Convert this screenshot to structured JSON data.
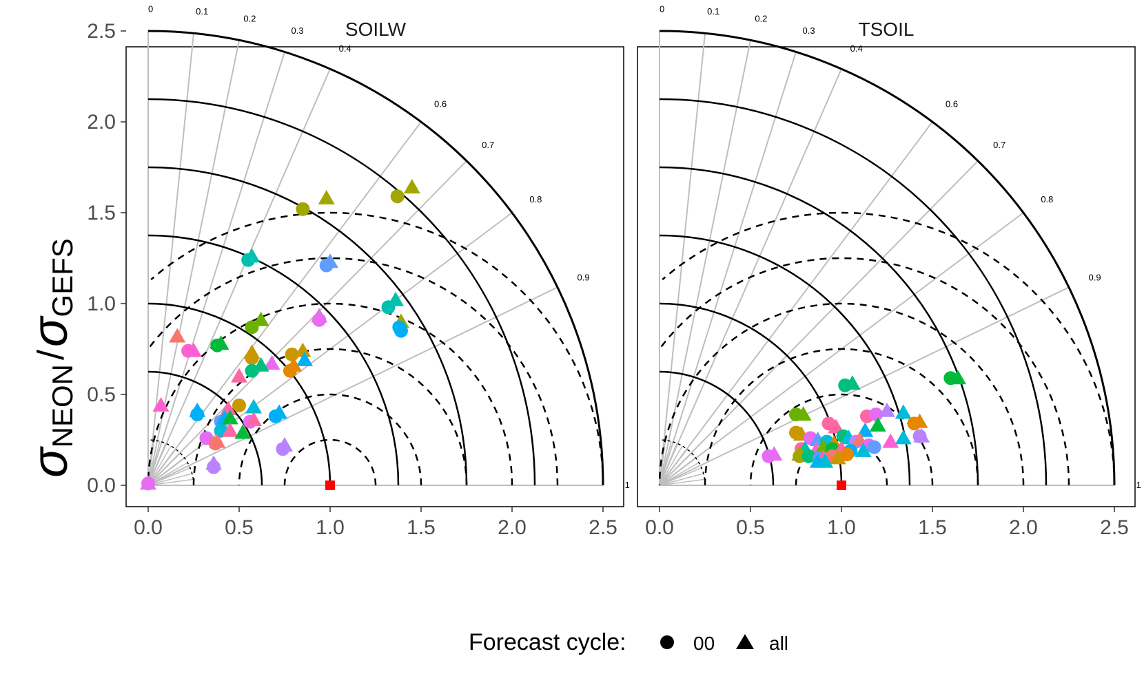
{
  "figure": {
    "ylabel_main": "σ",
    "ylabel_sub1": "NEON",
    "ylabel_sep": "/",
    "ylabel_sub2": "GEFS"
  },
  "legend": {
    "title": "Forecast cycle:",
    "items": [
      {
        "label": "00",
        "shape": "circle"
      },
      {
        "label": "all",
        "shape": "triangle"
      }
    ]
  },
  "colors": {
    "reference": "#ff0000",
    "sd_arcs": "#000000",
    "rmsd_arcs": "#000000",
    "corr_rays": "#bebebe",
    "palette": [
      "#F8766D",
      "#E58700",
      "#C99800",
      "#A3A500",
      "#6BB100",
      "#00BA38",
      "#00BF7D",
      "#00C0AF",
      "#00BCD8",
      "#00B0F6",
      "#619CFF",
      "#B983FF",
      "#E76BF3",
      "#FD61D1",
      "#FF67A4"
    ]
  },
  "chart_data": [
    {
      "type": "scatter",
      "subtype": "taylor-diagram",
      "title": "SOILW",
      "xlim": [
        0,
        2.5
      ],
      "ylim": [
        0,
        2.5
      ],
      "ticks": [
        "0.0",
        "0.5",
        "1.0",
        "1.5",
        "2.0",
        "2.5"
      ],
      "tick_values": [
        0,
        0.5,
        1.0,
        1.5,
        2.0,
        2.5
      ],
      "sd_arcs": [
        0.25,
        0.625,
        1.0,
        1.375,
        1.75,
        2.125,
        2.5
      ],
      "rmsd_arcs": [
        0.25,
        0.5,
        0.75,
        1.0,
        1.25,
        1.5
      ],
      "correlation_labels": [
        "0",
        "0.1",
        "0.2",
        "0.3",
        "0.4",
        "0.6",
        "0.7",
        "0.8",
        "0.9",
        "1"
      ],
      "correlation_values": [
        0,
        0.1,
        0.2,
        0.3,
        0.4,
        0.6,
        0.7,
        0.8,
        0.9,
        1
      ],
      "reference_point": [
        1.0,
        0.0
      ],
      "points": [
        {
          "x": 0.85,
          "y": 1.52,
          "shape": "circle",
          "color": "#A3A500"
        },
        {
          "x": 0.98,
          "y": 1.58,
          "shape": "triangle",
          "color": "#A3A500"
        },
        {
          "x": 1.37,
          "y": 1.59,
          "shape": "circle",
          "color": "#A3A500"
        },
        {
          "x": 1.45,
          "y": 1.64,
          "shape": "triangle",
          "color": "#A3A500"
        },
        {
          "x": 0.55,
          "y": 1.24,
          "shape": "circle",
          "color": "#00C0AF"
        },
        {
          "x": 0.57,
          "y": 1.26,
          "shape": "triangle",
          "color": "#00C0AF"
        },
        {
          "x": 0.98,
          "y": 1.21,
          "shape": "circle",
          "color": "#619CFF"
        },
        {
          "x": 1.0,
          "y": 1.23,
          "shape": "triangle",
          "color": "#619CFF"
        },
        {
          "x": 1.32,
          "y": 0.98,
          "shape": "circle",
          "color": "#00C0AF"
        },
        {
          "x": 1.36,
          "y": 1.02,
          "shape": "triangle",
          "color": "#00C0AF"
        },
        {
          "x": 1.39,
          "y": 0.9,
          "shape": "triangle",
          "color": "#A3A500"
        },
        {
          "x": 1.38,
          "y": 0.87,
          "shape": "circle",
          "color": "#00B0F6"
        },
        {
          "x": 1.39,
          "y": 0.85,
          "shape": "circle",
          "color": "#00B0F6"
        },
        {
          "x": 0.94,
          "y": 0.91,
          "shape": "circle",
          "color": "#E76BF3"
        },
        {
          "x": 0.94,
          "y": 0.93,
          "shape": "triangle",
          "color": "#E76BF3"
        },
        {
          "x": 0.57,
          "y": 0.87,
          "shape": "circle",
          "color": "#6BB100"
        },
        {
          "x": 0.62,
          "y": 0.91,
          "shape": "triangle",
          "color": "#6BB100"
        },
        {
          "x": 0.16,
          "y": 0.82,
          "shape": "triangle",
          "color": "#F8766D"
        },
        {
          "x": 0.22,
          "y": 0.74,
          "shape": "circle",
          "color": "#FD61D1"
        },
        {
          "x": 0.25,
          "y": 0.74,
          "shape": "triangle",
          "color": "#FD61D1"
        },
        {
          "x": 0.38,
          "y": 0.77,
          "shape": "circle",
          "color": "#00BA38"
        },
        {
          "x": 0.4,
          "y": 0.78,
          "shape": "triangle",
          "color": "#00BA38"
        },
        {
          "x": 0.57,
          "y": 0.7,
          "shape": "circle",
          "color": "#C99800"
        },
        {
          "x": 0.57,
          "y": 0.73,
          "shape": "triangle",
          "color": "#C99800"
        },
        {
          "x": 0.79,
          "y": 0.72,
          "shape": "circle",
          "color": "#C99800"
        },
        {
          "x": 0.85,
          "y": 0.74,
          "shape": "triangle",
          "color": "#C99800"
        },
        {
          "x": 0.86,
          "y": 0.69,
          "shape": "triangle",
          "color": "#00B0F6"
        },
        {
          "x": 0.78,
          "y": 0.63,
          "shape": "circle",
          "color": "#E58700"
        },
        {
          "x": 0.8,
          "y": 0.66,
          "shape": "triangle",
          "color": "#E58700"
        },
        {
          "x": 0.68,
          "y": 0.67,
          "shape": "triangle",
          "color": "#E76BF3"
        },
        {
          "x": 0.57,
          "y": 0.63,
          "shape": "circle",
          "color": "#00BF7D"
        },
        {
          "x": 0.62,
          "y": 0.66,
          "shape": "triangle",
          "color": "#00BF7D"
        },
        {
          "x": 0.5,
          "y": 0.6,
          "shape": "triangle",
          "color": "#FF67A4"
        },
        {
          "x": 0.07,
          "y": 0.44,
          "shape": "triangle",
          "color": "#FD61D1"
        },
        {
          "x": 0.27,
          "y": 0.39,
          "shape": "circle",
          "color": "#00B0F6"
        },
        {
          "x": 0.27,
          "y": 0.41,
          "shape": "triangle",
          "color": "#00B0F6"
        },
        {
          "x": 0.5,
          "y": 0.44,
          "shape": "circle",
          "color": "#C99800"
        },
        {
          "x": 0.44,
          "y": 0.42,
          "shape": "triangle",
          "color": "#FF67A4"
        },
        {
          "x": 0.58,
          "y": 0.43,
          "shape": "triangle",
          "color": "#00BCD8"
        },
        {
          "x": 0.7,
          "y": 0.38,
          "shape": "circle",
          "color": "#00B0F6"
        },
        {
          "x": 0.72,
          "y": 0.4,
          "shape": "triangle",
          "color": "#00B0F6"
        },
        {
          "x": 0.4,
          "y": 0.35,
          "shape": "circle",
          "color": "#619CFF"
        },
        {
          "x": 0.42,
          "y": 0.37,
          "shape": "triangle",
          "color": "#00B0F6"
        },
        {
          "x": 0.45,
          "y": 0.37,
          "shape": "triangle",
          "color": "#00BA38"
        },
        {
          "x": 0.56,
          "y": 0.35,
          "shape": "circle",
          "color": "#E76BF3"
        },
        {
          "x": 0.58,
          "y": 0.36,
          "shape": "triangle",
          "color": "#FF67A4"
        },
        {
          "x": 0.4,
          "y": 0.3,
          "shape": "circle",
          "color": "#00BCD8"
        },
        {
          "x": 0.45,
          "y": 0.3,
          "shape": "triangle",
          "color": "#FF67A4"
        },
        {
          "x": 0.52,
          "y": 0.29,
          "shape": "triangle",
          "color": "#00BA38"
        },
        {
          "x": 0.32,
          "y": 0.26,
          "shape": "circle",
          "color": "#E76BF3"
        },
        {
          "x": 0.37,
          "y": 0.23,
          "shape": "circle",
          "color": "#F8766D"
        },
        {
          "x": 0.38,
          "y": 0.24,
          "shape": "triangle",
          "color": "#F8766D"
        },
        {
          "x": 0.74,
          "y": 0.2,
          "shape": "circle",
          "color": "#B983FF"
        },
        {
          "x": 0.75,
          "y": 0.22,
          "shape": "triangle",
          "color": "#B983FF"
        },
        {
          "x": 0.36,
          "y": 0.1,
          "shape": "circle",
          "color": "#B983FF"
        },
        {
          "x": 0.36,
          "y": 0.12,
          "shape": "triangle",
          "color": "#B983FF"
        },
        {
          "x": 0.0,
          "y": 0.01,
          "shape": "circle",
          "color": "#E76BF3"
        },
        {
          "x": 0.0,
          "y": 0.01,
          "shape": "triangle",
          "color": "#E76BF3"
        }
      ]
    },
    {
      "type": "scatter",
      "subtype": "taylor-diagram",
      "title": "TSOIL",
      "xlim": [
        0,
        2.5
      ],
      "ylim": [
        0,
        2.5
      ],
      "ticks": [
        "0.0",
        "0.5",
        "1.0",
        "1.5",
        "2.0",
        "2.5"
      ],
      "tick_values": [
        0,
        0.5,
        1.0,
        1.5,
        2.0,
        2.5
      ],
      "sd_arcs": [
        0.25,
        0.625,
        1.0,
        1.375,
        1.75,
        2.125,
        2.5
      ],
      "rmsd_arcs": [
        0.25,
        0.5,
        0.75,
        1.0,
        1.25,
        1.5
      ],
      "correlation_labels": [
        "0",
        "0.1",
        "0.2",
        "0.3",
        "0.4",
        "0.6",
        "0.7",
        "0.8",
        "0.9",
        "1"
      ],
      "correlation_values": [
        0,
        0.1,
        0.2,
        0.3,
        0.4,
        0.6,
        0.7,
        0.8,
        0.9,
        1
      ],
      "reference_point": [
        1.0,
        0.0
      ],
      "points": [
        {
          "x": 1.6,
          "y": 0.59,
          "shape": "circle",
          "color": "#00BA38"
        },
        {
          "x": 1.64,
          "y": 0.59,
          "shape": "triangle",
          "color": "#00BA38"
        },
        {
          "x": 1.02,
          "y": 0.55,
          "shape": "circle",
          "color": "#00BF7D"
        },
        {
          "x": 1.06,
          "y": 0.56,
          "shape": "triangle",
          "color": "#00BF7D"
        },
        {
          "x": 0.75,
          "y": 0.39,
          "shape": "circle",
          "color": "#6BB100"
        },
        {
          "x": 0.79,
          "y": 0.39,
          "shape": "triangle",
          "color": "#6BB100"
        },
        {
          "x": 1.14,
          "y": 0.38,
          "shape": "circle",
          "color": "#FF67A4"
        },
        {
          "x": 1.19,
          "y": 0.39,
          "shape": "circle",
          "color": "#E76BF3"
        },
        {
          "x": 1.25,
          "y": 0.41,
          "shape": "triangle",
          "color": "#B983FF"
        },
        {
          "x": 1.34,
          "y": 0.4,
          "shape": "triangle",
          "color": "#00BCD8"
        },
        {
          "x": 1.4,
          "y": 0.34,
          "shape": "circle",
          "color": "#E58700"
        },
        {
          "x": 1.43,
          "y": 0.35,
          "shape": "triangle",
          "color": "#E58700"
        },
        {
          "x": 1.2,
          "y": 0.33,
          "shape": "triangle",
          "color": "#00BA38"
        },
        {
          "x": 0.93,
          "y": 0.34,
          "shape": "circle",
          "color": "#FF67A4"
        },
        {
          "x": 0.97,
          "y": 0.32,
          "shape": "triangle",
          "color": "#FF67A4"
        },
        {
          "x": 1.13,
          "y": 0.3,
          "shape": "triangle",
          "color": "#00B0F6"
        },
        {
          "x": 1.43,
          "y": 0.27,
          "shape": "circle",
          "color": "#B983FF"
        },
        {
          "x": 1.44,
          "y": 0.27,
          "shape": "triangle",
          "color": "#B983FF"
        },
        {
          "x": 1.34,
          "y": 0.26,
          "shape": "triangle",
          "color": "#00BCD8"
        },
        {
          "x": 1.27,
          "y": 0.24,
          "shape": "triangle",
          "color": "#FD61D1"
        },
        {
          "x": 0.75,
          "y": 0.29,
          "shape": "circle",
          "color": "#C99800"
        },
        {
          "x": 0.78,
          "y": 0.28,
          "shape": "triangle",
          "color": "#C99800"
        },
        {
          "x": 0.83,
          "y": 0.26,
          "shape": "circle",
          "color": "#E76BF3"
        },
        {
          "x": 0.87,
          "y": 0.25,
          "shape": "triangle",
          "color": "#619CFF"
        },
        {
          "x": 0.92,
          "y": 0.24,
          "shape": "circle",
          "color": "#00BCD8"
        },
        {
          "x": 0.96,
          "y": 0.23,
          "shape": "triangle",
          "color": "#E58700"
        },
        {
          "x": 1.01,
          "y": 0.27,
          "shape": "circle",
          "color": "#00BF7D"
        },
        {
          "x": 1.04,
          "y": 0.26,
          "shape": "triangle",
          "color": "#00BCD8"
        },
        {
          "x": 1.08,
          "y": 0.24,
          "shape": "circle",
          "color": "#B983FF"
        },
        {
          "x": 1.1,
          "y": 0.25,
          "shape": "triangle",
          "color": "#F8766D"
        },
        {
          "x": 1.15,
          "y": 0.22,
          "shape": "circle",
          "color": "#E76BF3"
        },
        {
          "x": 1.18,
          "y": 0.21,
          "shape": "circle",
          "color": "#619CFF"
        },
        {
          "x": 0.78,
          "y": 0.2,
          "shape": "circle",
          "color": "#FF67A4"
        },
        {
          "x": 0.8,
          "y": 0.2,
          "shape": "triangle",
          "color": "#00C0AF"
        },
        {
          "x": 0.86,
          "y": 0.19,
          "shape": "triangle",
          "color": "#FD61D1"
        },
        {
          "x": 0.9,
          "y": 0.21,
          "shape": "triangle",
          "color": "#6BB100"
        },
        {
          "x": 0.95,
          "y": 0.2,
          "shape": "circle",
          "color": "#00BA38"
        },
        {
          "x": 1.0,
          "y": 0.2,
          "shape": "triangle",
          "color": "#FF67A4"
        },
        {
          "x": 1.05,
          "y": 0.19,
          "shape": "circle",
          "color": "#00B0F6"
        },
        {
          "x": 1.12,
          "y": 0.19,
          "shape": "triangle",
          "color": "#00BCD8"
        },
        {
          "x": 0.77,
          "y": 0.16,
          "shape": "circle",
          "color": "#A3A500"
        },
        {
          "x": 0.77,
          "y": 0.17,
          "shape": "triangle",
          "color": "#A3A500"
        },
        {
          "x": 0.82,
          "y": 0.16,
          "shape": "circle",
          "color": "#00BF7D"
        },
        {
          "x": 0.88,
          "y": 0.15,
          "shape": "circle",
          "color": "#619CFF"
        },
        {
          "x": 0.9,
          "y": 0.15,
          "shape": "triangle",
          "color": "#FF67A4"
        },
        {
          "x": 0.95,
          "y": 0.16,
          "shape": "circle",
          "color": "#F8766D"
        },
        {
          "x": 0.98,
          "y": 0.15,
          "shape": "triangle",
          "color": "#C99800"
        },
        {
          "x": 1.03,
          "y": 0.17,
          "shape": "circle",
          "color": "#E58700"
        },
        {
          "x": 0.87,
          "y": 0.13,
          "shape": "triangle",
          "color": "#00B0F6"
        },
        {
          "x": 0.91,
          "y": 0.13,
          "shape": "triangle",
          "color": "#00BCD8"
        },
        {
          "x": 0.6,
          "y": 0.16,
          "shape": "circle",
          "color": "#E76BF3"
        },
        {
          "x": 0.63,
          "y": 0.17,
          "shape": "triangle",
          "color": "#E76BF3"
        }
      ]
    }
  ]
}
